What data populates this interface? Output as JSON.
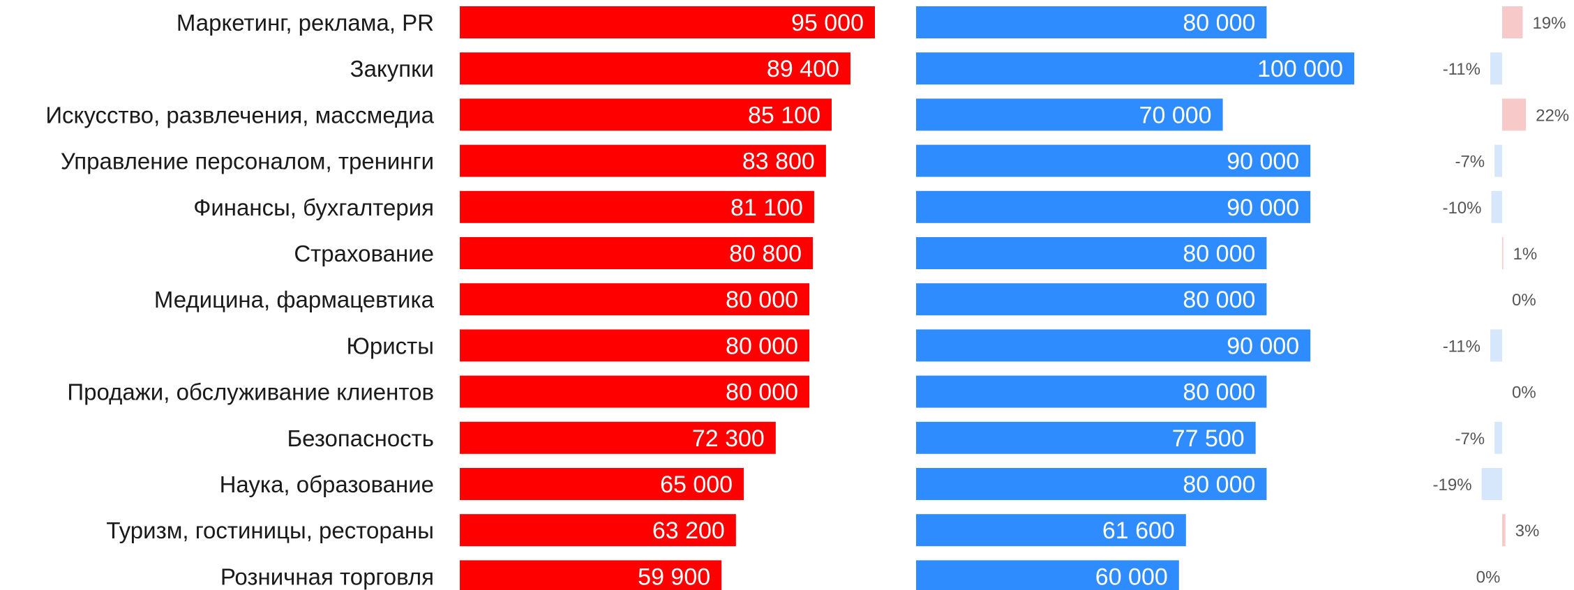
{
  "chart_data": {
    "type": "bar",
    "orientation": "horizontal",
    "categories": [
      "Маркетинг, реклама, PR",
      "Закупки",
      "Искусство, развлечения, массмедиа",
      "Управление персоналом, тренинги",
      "Финансы, бухгалтерия",
      "Страхование",
      "Медицина, фармацевтика",
      "Юристы",
      "Продажи, обслуживание клиентов",
      "Безопасность",
      "Наука, образование",
      "Туризм, гостиницы, рестораны",
      "Розничная торговля"
    ],
    "series": [
      {
        "color": "#ff0000",
        "values": [
          95000,
          89400,
          85100,
          83800,
          81100,
          80800,
          80000,
          80000,
          80000,
          72300,
          65000,
          63200,
          59900
        ],
        "value_labels": [
          "95 000",
          "89 400",
          "85 100",
          "83 800",
          "81 100",
          "80 800",
          "80 000",
          "80 000",
          "80 000",
          "72 300",
          "65 000",
          "63 200",
          "59 900"
        ]
      },
      {
        "color": "#2f8cff",
        "values": [
          80000,
          100000,
          70000,
          90000,
          90000,
          80000,
          80000,
          90000,
          80000,
          77500,
          80000,
          61600,
          60000
        ],
        "value_labels": [
          "80 000",
          "100 000",
          "70 000",
          "90 000",
          "90 000",
          "80 000",
          "80 000",
          "90 000",
          "80 000",
          "77 500",
          "80 000",
          "61 600",
          "60 000"
        ]
      },
      {
        "positive_color": "#f8c9c9",
        "negative_color": "#d6e6fb",
        "values": [
          19,
          -11,
          22,
          -7,
          -10,
          1,
          0,
          -11,
          0,
          -7,
          -19,
          3,
          0
        ],
        "value_labels": [
          "19%",
          "-11%",
          "22%",
          "-7%",
          "-10%",
          "1%",
          "0%",
          "-11%",
          "0%",
          "-7%",
          "-19%",
          "3%",
          "0%"
        ]
      }
    ],
    "xlim": [
      0,
      100000
    ],
    "grid": false,
    "legend": "none"
  }
}
